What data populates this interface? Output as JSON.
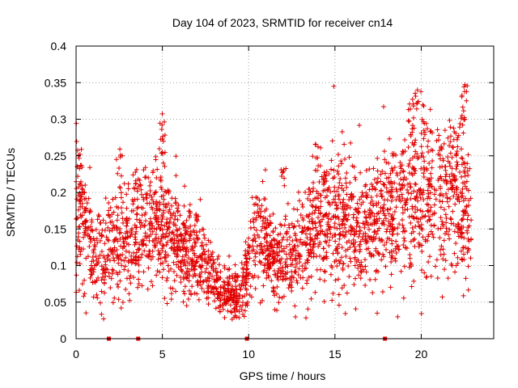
{
  "chart_data": {
    "type": "scatter",
    "title": "Day 104 of 2023, SRMTID for receiver cn14",
    "xlabel": "GPS time / hours",
    "ylabel": "SRMTID / TECUs",
    "xlim": [
      0,
      24.2
    ],
    "ylim": [
      0,
      0.4
    ],
    "xticks": [
      "0",
      "5",
      "10",
      "15",
      "20"
    ],
    "yticks": [
      "0",
      "0.05",
      "0.1",
      "0.15",
      "0.2",
      "0.25",
      "0.3",
      "0.35",
      "0.4"
    ],
    "grid": true,
    "marker": "plus",
    "color": "#e00000",
    "trend": [
      [
        0.0,
        0.19
      ],
      [
        0.5,
        0.15
      ],
      [
        1.0,
        0.12
      ],
      [
        1.5,
        0.11
      ],
      [
        2.0,
        0.12
      ],
      [
        2.5,
        0.14
      ],
      [
        3.0,
        0.13
      ],
      [
        3.5,
        0.14
      ],
      [
        4.0,
        0.15
      ],
      [
        4.5,
        0.16
      ],
      [
        5.0,
        0.16
      ],
      [
        5.5,
        0.14
      ],
      [
        6.0,
        0.13
      ],
      [
        6.5,
        0.12
      ],
      [
        7.0,
        0.12
      ],
      [
        7.5,
        0.1
      ],
      [
        8.0,
        0.08
      ],
      [
        8.5,
        0.065
      ],
      [
        9.0,
        0.06
      ],
      [
        9.5,
        0.055
      ],
      [
        10.0,
        0.1
      ],
      [
        10.5,
        0.15
      ],
      [
        11.0,
        0.13
      ],
      [
        11.5,
        0.11
      ],
      [
        12.0,
        0.1
      ],
      [
        12.5,
        0.11
      ],
      [
        13.0,
        0.12
      ],
      [
        13.5,
        0.14
      ],
      [
        14.0,
        0.15
      ],
      [
        14.5,
        0.15
      ],
      [
        15.0,
        0.16
      ],
      [
        15.5,
        0.16
      ],
      [
        16.0,
        0.16
      ],
      [
        16.5,
        0.15
      ],
      [
        17.0,
        0.155
      ],
      [
        17.5,
        0.16
      ],
      [
        18.0,
        0.17
      ],
      [
        18.5,
        0.17
      ],
      [
        19.0,
        0.18
      ],
      [
        19.5,
        0.19
      ],
      [
        20.0,
        0.19
      ],
      [
        20.5,
        0.19
      ],
      [
        21.0,
        0.2
      ],
      [
        21.5,
        0.2
      ],
      [
        22.0,
        0.19
      ],
      [
        22.5,
        0.18
      ],
      [
        22.9,
        0.15
      ]
    ],
    "excursions": [
      {
        "x": 0.2,
        "y": 0.27
      },
      {
        "x": 2.5,
        "y": 0.26
      },
      {
        "x": 5.0,
        "y": 0.31
      },
      {
        "x": 5.0,
        "y": 0.27
      },
      {
        "x": 3.6,
        "y": 0.24
      },
      {
        "x": 14.0,
        "y": 0.27
      },
      {
        "x": 19.4,
        "y": 0.33
      },
      {
        "x": 19.7,
        "y": 0.345
      },
      {
        "x": 20.2,
        "y": 0.32
      },
      {
        "x": 22.5,
        "y": 0.35
      },
      {
        "x": 22.4,
        "y": 0.32
      },
      {
        "x": 22.0,
        "y": 0.29
      },
      {
        "x": 12.0,
        "y": 0.24
      },
      {
        "x": 14.4,
        "y": 0.24
      },
      {
        "x": 21.6,
        "y": 0.25
      }
    ],
    "zero_markers": [
      1.9,
      3.6,
      9.9,
      17.9
    ],
    "point_count": 2600,
    "seed": 104
  }
}
